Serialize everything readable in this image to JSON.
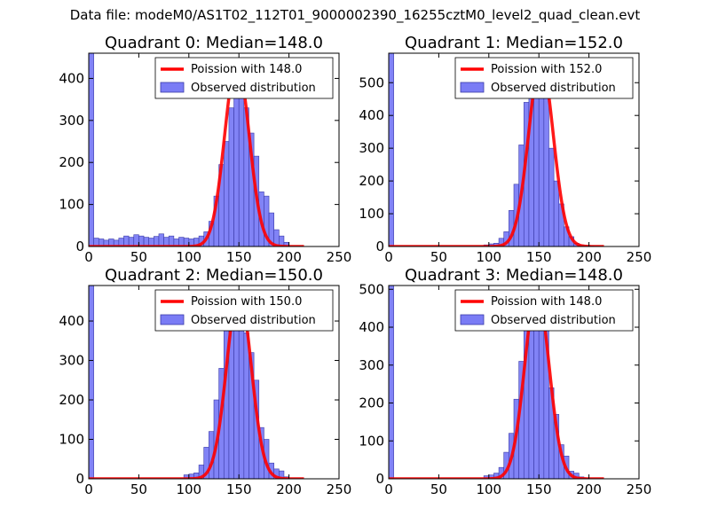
{
  "suptitle": "Data file: modeM0/AS1T02_112T01_9000002390_16255cztM0_level2_quad_clean.evt",
  "colors": {
    "bars": "#7a7cf5",
    "bar_edge": "#3a3aa8",
    "fit": "#ff0000",
    "axis": "#000000"
  },
  "chart_data": [
    {
      "type": "bar",
      "title": "Quadrant 0: Median=148.0",
      "xlim": [
        0,
        250
      ],
      "ylim": [
        0,
        460
      ],
      "xticks": [
        0,
        50,
        100,
        150,
        200,
        250
      ],
      "yticks": [
        0,
        100,
        200,
        300,
        400
      ],
      "bin_width": 5,
      "bin_starts": [
        0,
        5,
        10,
        15,
        20,
        25,
        30,
        35,
        40,
        45,
        50,
        55,
        60,
        65,
        70,
        75,
        80,
        85,
        90,
        95,
        100,
        105,
        110,
        115,
        120,
        125,
        130,
        135,
        140,
        145,
        150,
        155,
        160,
        165,
        170,
        175,
        180,
        185,
        190,
        195
      ],
      "values": [
        460,
        20,
        18,
        15,
        18,
        15,
        20,
        25,
        22,
        28,
        25,
        22,
        20,
        24,
        30,
        22,
        25,
        18,
        22,
        20,
        18,
        20,
        25,
        35,
        60,
        120,
        195,
        250,
        330,
        370,
        360,
        330,
        270,
        215,
        130,
        120,
        80,
        40,
        25,
        10
      ],
      "fit": {
        "label": "Poission with 148.0",
        "mean": 148.0,
        "peak": 440
      },
      "legend": [
        "Poission with 148.0",
        "Observed distribution"
      ]
    },
    {
      "type": "bar",
      "title": "Quadrant 1: Median=152.0",
      "xlim": [
        0,
        250
      ],
      "ylim": [
        0,
        590
      ],
      "xticks": [
        0,
        50,
        100,
        150,
        200,
        250
      ],
      "yticks": [
        0,
        100,
        200,
        300,
        400,
        500
      ],
      "bin_width": 5,
      "bin_starts": [
        0,
        5,
        10,
        15,
        20,
        25,
        30,
        35,
        40,
        45,
        50,
        55,
        60,
        65,
        70,
        75,
        80,
        85,
        90,
        95,
        100,
        105,
        110,
        115,
        120,
        125,
        130,
        135,
        140,
        145,
        150,
        155,
        160,
        165,
        170,
        175,
        180,
        185,
        190,
        195,
        200,
        205,
        210
      ],
      "values": [
        590,
        0,
        0,
        0,
        0,
        0,
        0,
        0,
        0,
        0,
        0,
        0,
        0,
        0,
        0,
        0,
        0,
        0,
        0,
        5,
        8,
        10,
        25,
        45,
        110,
        190,
        310,
        440,
        530,
        530,
        520,
        490,
        300,
        200,
        130,
        60,
        30,
        10,
        5,
        3,
        2,
        1,
        0
      ],
      "fit": {
        "label": "Poission with 152.0",
        "mean": 152.0,
        "peak": 565
      },
      "legend": [
        "Poission with 152.0",
        "Observed distribution"
      ]
    },
    {
      "type": "bar",
      "title": "Quadrant 2: Median=150.0",
      "xlim": [
        0,
        250
      ],
      "ylim": [
        0,
        490
      ],
      "xticks": [
        0,
        50,
        100,
        150,
        200,
        250
      ],
      "yticks": [
        0,
        100,
        200,
        300,
        400
      ],
      "bin_width": 5,
      "bin_starts": [
        0,
        5,
        10,
        15,
        20,
        25,
        30,
        35,
        40,
        45,
        50,
        55,
        60,
        65,
        70,
        75,
        80,
        85,
        90,
        95,
        100,
        105,
        110,
        115,
        120,
        125,
        130,
        135,
        140,
        145,
        150,
        155,
        160,
        165,
        170,
        175,
        180,
        185,
        190,
        195,
        200
      ],
      "values": [
        490,
        0,
        0,
        0,
        0,
        0,
        0,
        0,
        0,
        0,
        0,
        0,
        0,
        0,
        0,
        0,
        0,
        0,
        0,
        10,
        12,
        15,
        35,
        80,
        120,
        200,
        280,
        400,
        460,
        440,
        430,
        370,
        320,
        250,
        130,
        100,
        40,
        25,
        20,
        5,
        0
      ],
      "fit": {
        "label": "Poission with 150.0",
        "mean": 150.0,
        "peak": 475
      },
      "legend": [
        "Poission with 150.0",
        "Observed distribution"
      ]
    },
    {
      "type": "bar",
      "title": "Quadrant 3: Median=148.0",
      "xlim": [
        0,
        250
      ],
      "ylim": [
        0,
        510
      ],
      "xticks": [
        0,
        50,
        100,
        150,
        200,
        250
      ],
      "yticks": [
        0,
        100,
        200,
        300,
        400,
        500
      ],
      "bin_width": 5,
      "bin_starts": [
        0,
        5,
        10,
        15,
        20,
        25,
        30,
        35,
        40,
        45,
        50,
        55,
        60,
        65,
        70,
        75,
        80,
        85,
        90,
        95,
        100,
        105,
        110,
        115,
        120,
        125,
        130,
        135,
        140,
        145,
        150,
        155,
        160,
        165,
        170,
        175,
        180,
        185,
        190,
        195
      ],
      "values": [
        510,
        0,
        0,
        0,
        0,
        0,
        0,
        0,
        0,
        0,
        0,
        0,
        0,
        0,
        0,
        0,
        0,
        0,
        0,
        8,
        10,
        15,
        30,
        70,
        120,
        210,
        310,
        440,
        490,
        470,
        460,
        410,
        240,
        170,
        90,
        60,
        20,
        15,
        5,
        2
      ],
      "fit": {
        "label": "Poission with 148.0",
        "mean": 148.0,
        "peak": 495
      },
      "legend": [
        "Poission with 148.0",
        "Observed distribution"
      ]
    }
  ]
}
